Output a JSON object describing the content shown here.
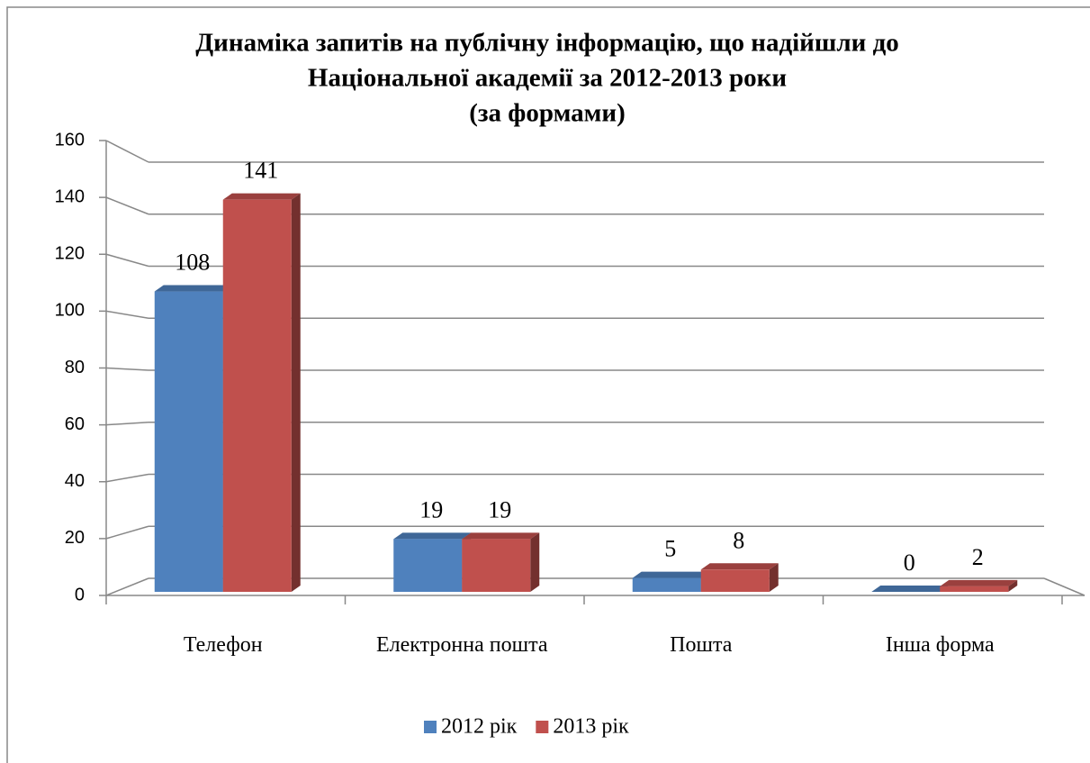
{
  "chart_data": {
    "type": "bar3d",
    "title": [
      "Динаміка запитів на публічну інформацію, що надійшли до",
      "Національної академії за 2012-2013 роки",
      "(за формами)"
    ],
    "categories": [
      "Телефон",
      "Електронна пошта",
      "Пошта",
      "Інша форма"
    ],
    "series": [
      {
        "name": "2012 рік",
        "color": "#4f81bd",
        "values": [
          108,
          19,
          5,
          0
        ]
      },
      {
        "name": "2013 рік",
        "color": "#c0504d",
        "values": [
          141,
          19,
          8,
          2
        ]
      }
    ],
    "ylim": [
      0,
      160
    ],
    "yticks": [
      0,
      20,
      40,
      60,
      80,
      100,
      120,
      140,
      160
    ],
    "grid": true,
    "legend": "bottom"
  }
}
